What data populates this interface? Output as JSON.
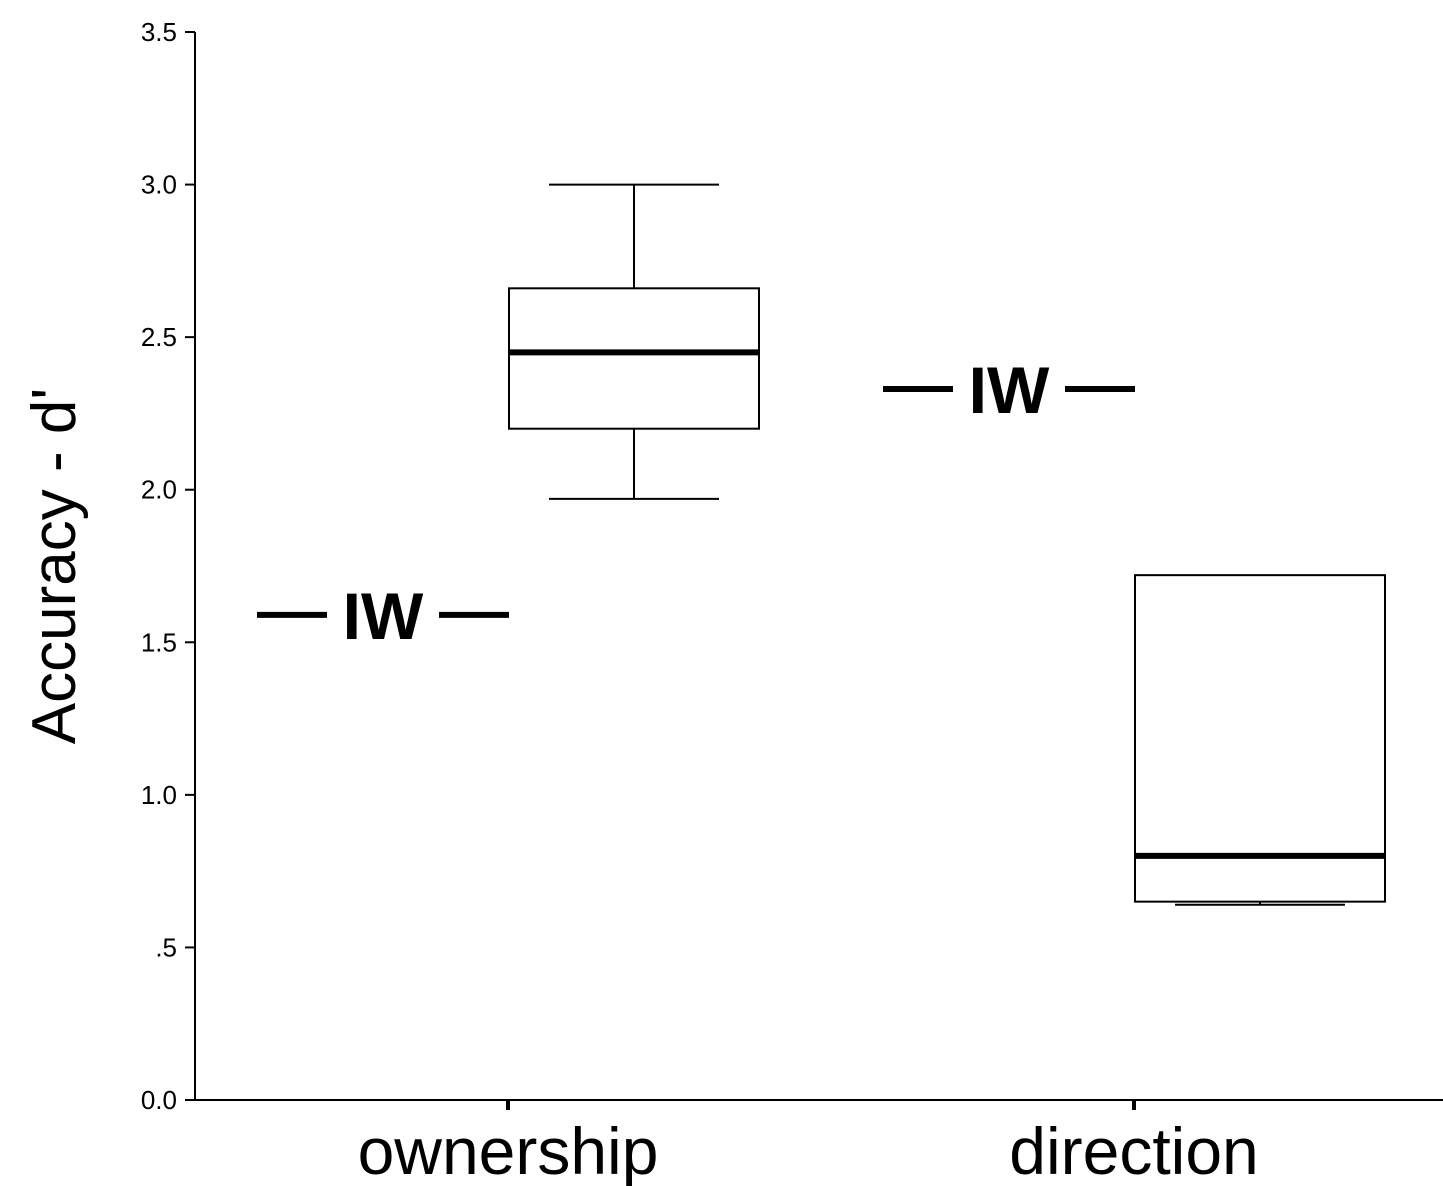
{
  "chart_data": {
    "type": "box",
    "ylabel": "Accuracy - d'",
    "ylim": [
      0,
      3.5
    ],
    "y_ticks": [
      {
        "value": 0,
        "label": "0.0"
      },
      {
        "value": 0.5,
        "label": ".5"
      },
      {
        "value": 1.0,
        "label": "1.0"
      },
      {
        "value": 1.5,
        "label": "1.5"
      },
      {
        "value": 2.0,
        "label": "2.0"
      },
      {
        "value": 2.5,
        "label": "2.5"
      },
      {
        "value": 3.0,
        "label": "3.0"
      },
      {
        "value": 3.5,
        "label": "3.5"
      }
    ],
    "categories": [
      "ownership",
      "direction"
    ],
    "boxes": [
      {
        "category": "ownership",
        "whisker_low": 1.97,
        "q1": 2.2,
        "median": 2.45,
        "q3": 2.66,
        "whisker_high": 3.0
      },
      {
        "category": "direction",
        "whisker_low": 0.64,
        "q1": 0.65,
        "median": 0.8,
        "q3": 1.72,
        "whisker_high": 1.72
      }
    ],
    "markers": [
      {
        "category": "ownership",
        "label": "IW",
        "value": 1.59
      },
      {
        "category": "direction",
        "label": "IW",
        "value": 2.33
      }
    ],
    "grid": false
  }
}
